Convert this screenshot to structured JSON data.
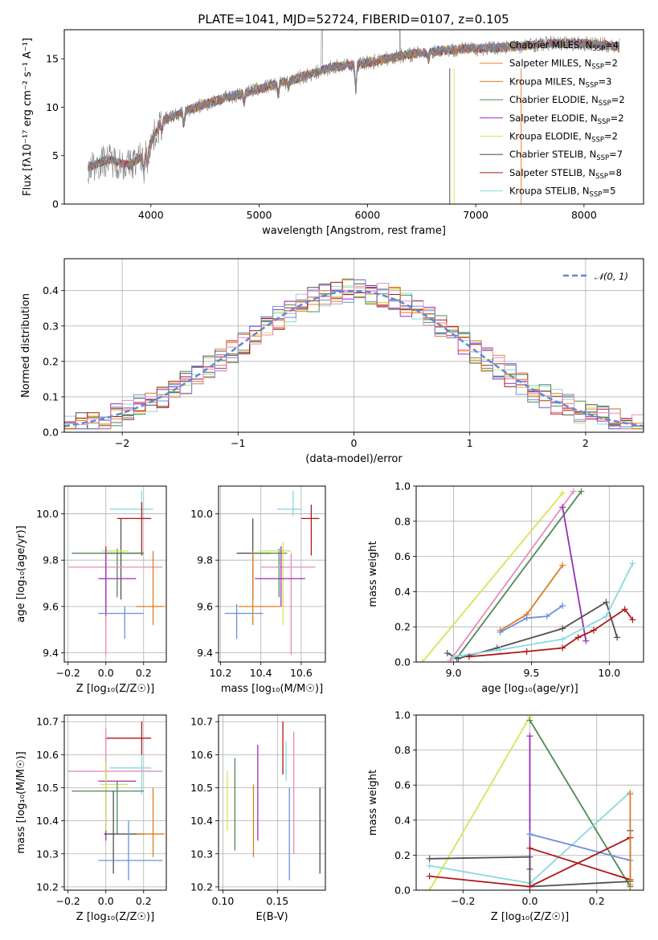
{
  "figure": {
    "title": "PLATE=1041, MJD=52724, FIBERID=0107, z=0.105"
  },
  "colors": {
    "chabrier_miles": "#6a8fdf",
    "salpeter_miles": "#f07f2a",
    "kroupa_miles": "#e07b22",
    "chabrier_elodie": "#4f8a55",
    "salpeter_elodie": "#9a2fb8",
    "kroupa_elodie": "#d9e35a",
    "chabrier_stelib": "#505050",
    "salpeter_stelib": "#b01616",
    "kroupa_stelib": "#8ad9e0",
    "pink": "#e88ac0",
    "spectrum": "#808080",
    "normal_curve": "#5b8bd6"
  },
  "chart_data": [
    {
      "id": "spectrum",
      "type": "line",
      "title": "PLATE=1041, MJD=52724, FIBERID=0107, z=0.105",
      "xlabel": "wavelength [Angstrom, rest frame]",
      "ylabel": "Flux [fλ10⁻¹⁷ erg cm⁻² s⁻¹ A⁻¹]",
      "xlim": [
        3200,
        8550
      ],
      "ylim": [
        0,
        18
      ],
      "xticks": [
        4000,
        5000,
        6000,
        7000,
        8000
      ],
      "yticks": [
        0,
        5,
        10,
        15
      ],
      "grid": false,
      "legend_position": "right",
      "legend": [
        "Chabrier MILES, N_SSP=4",
        "Salpeter MILES, N_SSP=2",
        "Kroupa MILES, N_SSP=3",
        "Chabrier ELODIE, N_SSP=2",
        "Salpeter ELODIE, N_SSP=2",
        "Kroupa ELODIE, N_SSP=2",
        "Chabrier STELIB, N_SSP=7",
        "Salpeter STELIB, N_SSP=8",
        "Kroupa STELIB, N_SSP=5"
      ],
      "continuum": {
        "x": [
          3420,
          3600,
          3800,
          3950,
          4100,
          4300,
          4500,
          4700,
          4900,
          5100,
          5300,
          5500,
          5700,
          5900,
          6100,
          6300,
          6500,
          6700,
          6900,
          7100,
          7300,
          7500,
          7700,
          7900,
          8100,
          8300
        ],
        "y": [
          3.8,
          4.6,
          4.0,
          5.2,
          8.6,
          9.5,
          10.3,
          11.0,
          11.6,
          12.2,
          12.8,
          13.5,
          14.2,
          14.4,
          14.8,
          15.3,
          15.6,
          15.9,
          16.0,
          16.1,
          16.2,
          16.4,
          16.6,
          16.6,
          16.5,
          16.3
        ]
      }
    },
    {
      "id": "residual-histogram",
      "type": "line",
      "xlabel": "(data-model)/error",
      "ylabel": "Normed distribution",
      "xlim": [
        -2.5,
        2.5
      ],
      "ylim": [
        0,
        0.49
      ],
      "xticks": [
        -2,
        -1,
        0,
        1,
        2
      ],
      "yticks": [
        0.0,
        0.1,
        0.2,
        0.3,
        0.4
      ],
      "grid": true,
      "legend_position": "top-right",
      "legend": [
        "𝒩(0, 1)"
      ],
      "normal": {
        "mu": 0,
        "sigma": 1
      }
    },
    {
      "id": "age-vs-z",
      "type": "scatter",
      "xlabel": "Z [log₁₀(Z/Z☉)]",
      "ylabel": "age [log₁₀(age/yr)]",
      "xlim": [
        -0.22,
        0.32
      ],
      "ylim": [
        9.36,
        10.12
      ],
      "xticks": [
        -0.2,
        0.0,
        0.2
      ],
      "yticks": [
        9.4,
        9.6,
        9.8,
        10.0
      ],
      "grid": true,
      "errorbars": [
        {
          "color": "#8ad9e0",
          "x": 0.19,
          "xlo": 0.02,
          "xhi": 0.25,
          "y": 10.02,
          "ylo": 9.99,
          "yhi": 10.1
        },
        {
          "color": "#b01616",
          "x": 0.19,
          "xlo": 0.06,
          "xhi": 0.24,
          "y": 9.98,
          "ylo": 9.82,
          "yhi": 10.05
        },
        {
          "color": "#505050",
          "x": 0.08,
          "xlo": -0.01,
          "xhi": 0.2,
          "y": 9.83,
          "ylo": 9.63,
          "yhi": 9.98
        },
        {
          "color": "#4f8a55",
          "x": 0.06,
          "xlo": -0.18,
          "xhi": 0.2,
          "y": 9.83,
          "ylo": 9.64,
          "yhi": 9.85
        },
        {
          "color": "#d9e35a",
          "x": 0.0,
          "xlo": -0.02,
          "xhi": 0.12,
          "y": 9.84,
          "ylo": 9.52,
          "yhi": 9.88
        },
        {
          "color": "#e88ac0",
          "x": 0.0,
          "xlo": -0.2,
          "xhi": 0.3,
          "y": 9.77,
          "ylo": 9.39,
          "yhi": 9.83
        },
        {
          "color": "#9a2fb8",
          "x": 0.0,
          "xlo": -0.04,
          "xhi": 0.16,
          "y": 9.72,
          "ylo": 9.56,
          "yhi": 9.86
        },
        {
          "color": "#e07b22",
          "x": 0.25,
          "xlo": 0.16,
          "xhi": 0.31,
          "y": 9.6,
          "ylo": 9.52,
          "yhi": 9.84
        },
        {
          "color": "#6a8fdf",
          "x": 0.1,
          "xlo": -0.04,
          "xhi": 0.2,
          "y": 9.57,
          "ylo": 9.46,
          "yhi": 9.6
        }
      ]
    },
    {
      "id": "age-vs-mass",
      "type": "scatter",
      "xlabel": "mass [log₁₀(M/M☉)]",
      "ylabel": "",
      "xlim": [
        10.19,
        10.72
      ],
      "ylim": [
        9.36,
        10.12
      ],
      "xticks": [
        10.2,
        10.4,
        10.6
      ],
      "yticks": [
        9.4,
        9.6,
        9.8,
        10.0
      ],
      "grid": true,
      "errorbars": [
        {
          "color": "#8ad9e0",
          "x": 10.56,
          "xlo": 10.48,
          "xhi": 10.6,
          "y": 10.02,
          "ylo": 9.99,
          "yhi": 10.1
        },
        {
          "color": "#b01616",
          "x": 10.65,
          "xlo": 10.6,
          "xhi": 10.69,
          "y": 9.98,
          "ylo": 9.82,
          "yhi": 10.04
        },
        {
          "color": "#505050",
          "x": 10.36,
          "xlo": 10.28,
          "xhi": 10.45,
          "y": 9.83,
          "ylo": 9.63,
          "yhi": 9.98
        },
        {
          "color": "#4f8a55",
          "x": 10.49,
          "xlo": 10.36,
          "xhi": 10.53,
          "y": 9.83,
          "ylo": 9.64,
          "yhi": 9.85
        },
        {
          "color": "#d9e35a",
          "x": 10.51,
          "xlo": 10.39,
          "xhi": 10.55,
          "y": 9.84,
          "ylo": 9.52,
          "yhi": 9.88
        },
        {
          "color": "#e88ac0",
          "x": 10.55,
          "xlo": 10.4,
          "xhi": 10.67,
          "y": 9.77,
          "ylo": 9.39,
          "yhi": 9.83
        },
        {
          "color": "#9a2fb8",
          "x": 10.5,
          "xlo": 10.37,
          "xhi": 10.62,
          "y": 9.72,
          "ylo": 9.6,
          "yhi": 9.86
        },
        {
          "color": "#e07b22",
          "x": 10.36,
          "xlo": 10.29,
          "xhi": 10.5,
          "y": 9.6,
          "ylo": 9.52,
          "yhi": 9.84
        },
        {
          "color": "#6a8fdf",
          "x": 10.28,
          "xlo": 10.22,
          "xhi": 10.41,
          "y": 9.57,
          "ylo": 9.46,
          "yhi": 9.61
        }
      ]
    },
    {
      "id": "mass-weight-vs-age",
      "type": "line",
      "xlabel": "age [log₁₀(age/yr)]",
      "ylabel": "mass weight",
      "xlim": [
        8.76,
        10.22
      ],
      "ylim": [
        0,
        1.0
      ],
      "xticks": [
        9.0,
        9.5,
        10.0
      ],
      "yticks": [
        0.0,
        0.2,
        0.4,
        0.6,
        0.8,
        1.0
      ],
      "grid": true,
      "series": [
        {
          "color": "#d9e35a",
          "x": [
            8.8,
            9.7
          ],
          "y": [
            0.0,
            0.96
          ]
        },
        {
          "color": "#e88ac0",
          "x": [
            8.98,
            9.77
          ],
          "y": [
            0.01,
            0.97
          ]
        },
        {
          "color": "#4f8a55",
          "x": [
            9.02,
            9.82
          ],
          "y": [
            0.02,
            0.97
          ]
        },
        {
          "color": "#9a2fb8",
          "x": [
            9.7,
            9.85
          ],
          "y": [
            0.88,
            0.12
          ]
        },
        {
          "color": "#e07b22",
          "x": [
            9.3,
            9.47,
            9.7
          ],
          "y": [
            0.18,
            0.27,
            0.55
          ]
        },
        {
          "color": "#6a8fdf",
          "x": [
            9.3,
            9.47,
            9.6,
            9.7
          ],
          "y": [
            0.17,
            0.25,
            0.26,
            0.32
          ]
        },
        {
          "color": "#505050",
          "x": [
            8.96,
            9.03,
            9.28,
            9.7,
            9.98,
            10.05
          ],
          "y": [
            0.05,
            0.02,
            0.08,
            0.19,
            0.34,
            0.14
          ]
        },
        {
          "color": "#8ad9e0",
          "x": [
            9.0,
            9.3,
            9.7,
            9.98,
            10.15
          ],
          "y": [
            0.03,
            0.07,
            0.13,
            0.26,
            0.56
          ]
        },
        {
          "color": "#b01616",
          "x": [
            9.1,
            9.47,
            9.7,
            9.8,
            9.9,
            10.1,
            10.15
          ],
          "y": [
            0.03,
            0.06,
            0.08,
            0.14,
            0.18,
            0.3,
            0.24
          ]
        }
      ]
    },
    {
      "id": "mass-vs-z",
      "type": "scatter",
      "xlabel": "Z [log₁₀(Z/Z☉)]",
      "ylabel": "mass [log₁₀(M/M☉)]",
      "xlim": [
        -0.22,
        0.32
      ],
      "ylim": [
        10.19,
        10.72
      ],
      "xticks": [
        -0.2,
        0.0,
        0.2
      ],
      "yticks": [
        10.2,
        10.3,
        10.4,
        10.5,
        10.6,
        10.7
      ],
      "grid": true,
      "errorbars": [
        {
          "color": "#b01616",
          "x": 0.19,
          "xlo": 0.0,
          "xhi": 0.24,
          "y": 10.65,
          "ylo": 10.6,
          "yhi": 10.7
        },
        {
          "color": "#8ad9e0",
          "x": 0.19,
          "xlo": 0.02,
          "xhi": 0.24,
          "y": 10.56,
          "ylo": 10.48,
          "yhi": 10.6
        },
        {
          "color": "#e88ac0",
          "x": 0.0,
          "xlo": -0.2,
          "xhi": 0.3,
          "y": 10.55,
          "ylo": 10.38,
          "yhi": 10.68
        },
        {
          "color": "#9a2fb8",
          "x": 0.0,
          "xlo": -0.04,
          "xhi": 0.16,
          "y": 10.52,
          "ylo": 10.34,
          "yhi": 10.58
        },
        {
          "color": "#d9e35a",
          "x": 0.0,
          "xlo": -0.03,
          "xhi": 0.12,
          "y": 10.51,
          "ylo": 10.37,
          "yhi": 10.58
        },
        {
          "color": "#4f8a55",
          "x": 0.06,
          "xlo": -0.18,
          "xhi": 0.2,
          "y": 10.49,
          "ylo": 10.36,
          "yhi": 10.52
        },
        {
          "color": "#505050",
          "x": 0.04,
          "xlo": -0.01,
          "xhi": 0.2,
          "y": 10.36,
          "ylo": 10.24,
          "yhi": 10.49
        },
        {
          "color": "#e07b22",
          "x": 0.25,
          "xlo": 0.16,
          "xhi": 0.31,
          "y": 10.36,
          "ylo": 10.29,
          "yhi": 10.5
        },
        {
          "color": "#6a8fdf",
          "x": 0.12,
          "xlo": -0.04,
          "xhi": 0.3,
          "y": 10.28,
          "ylo": 10.22,
          "yhi": 10.4
        }
      ]
    },
    {
      "id": "mass-vs-ebv",
      "type": "scatter",
      "xlabel": "E(B-V)",
      "ylabel": "",
      "xlim": [
        0.096,
        0.194
      ],
      "ylim": [
        10.19,
        10.72
      ],
      "xticks": [
        0.1,
        0.15
      ],
      "yticks": [
        10.2,
        10.3,
        10.4,
        10.5,
        10.6,
        10.7
      ],
      "grid": true,
      "errorbars": [
        {
          "color": "#d9e35a",
          "x": 0.104,
          "y": 10.46,
          "ylo": 10.37,
          "yhi": 10.55
        },
        {
          "color": "#4f8a55",
          "x": 0.111,
          "y": 10.45,
          "ylo": 10.31,
          "yhi": 10.59
        },
        {
          "color": "#e07b22",
          "x": 0.128,
          "y": 10.4,
          "ylo": 10.29,
          "yhi": 10.51
        },
        {
          "color": "#9a2fb8",
          "x": 0.132,
          "y": 10.48,
          "ylo": 10.34,
          "yhi": 10.63
        },
        {
          "color": "#b01616",
          "x": 0.155,
          "y": 10.62,
          "ylo": 10.54,
          "yhi": 10.7
        },
        {
          "color": "#8ad9e0",
          "x": 0.158,
          "y": 10.58,
          "ylo": 10.52,
          "yhi": 10.64
        },
        {
          "color": "#6a8fdf",
          "x": 0.161,
          "y": 10.37,
          "ylo": 10.22,
          "yhi": 10.5
        },
        {
          "color": "#e88ac0",
          "x": 0.165,
          "y": 10.5,
          "ylo": 10.3,
          "yhi": 10.67
        },
        {
          "color": "#505050",
          "x": 0.189,
          "y": 10.37,
          "ylo": 10.24,
          "yhi": 10.5
        }
      ]
    },
    {
      "id": "mass-weight-vs-z",
      "type": "line",
      "xlabel": "Z [log₁₀(Z/Z☉)]",
      "ylabel": "mass weight",
      "xlim": [
        -0.34,
        0.34
      ],
      "ylim": [
        0,
        1.0
      ],
      "xticks": [
        -0.2,
        0.0,
        0.2
      ],
      "yticks": [
        0.0,
        0.2,
        0.4,
        0.6,
        0.8,
        1.0
      ],
      "grid": true,
      "series": [
        {
          "color": "#d9e35a",
          "x": [
            -0.3,
            0.0
          ],
          "y": [
            0.0,
            0.99
          ]
        },
        {
          "color": "#4f8a55",
          "x": [
            0.0,
            0.3
          ],
          "y": [
            0.97,
            0.02
          ]
        },
        {
          "color": "#9a2fb8",
          "x": [
            0.0,
            0.0
          ],
          "y": [
            0.88,
            0.12
          ]
        },
        {
          "color": "#8ad9e0",
          "x": [
            -0.3,
            0.0,
            0.3
          ],
          "y": [
            0.14,
            0.04,
            0.56
          ]
        },
        {
          "color": "#6a8fdf",
          "x": [
            0.0,
            0.3
          ],
          "y": [
            0.32,
            0.17
          ]
        },
        {
          "color": "#505050",
          "x": [
            -0.3,
            0.0,
            0.0,
            0.3,
            0.3
          ],
          "y": [
            0.18,
            0.19,
            0.02,
            0.05,
            0.34
          ]
        },
        {
          "color": "#b01616",
          "x": [
            -0.3,
            0.0,
            0.3
          ],
          "y": [
            0.08,
            0.02,
            0.3
          ]
        },
        {
          "color": "#b01616",
          "x": [
            0.0,
            0.3
          ],
          "y": [
            0.24,
            0.06
          ]
        },
        {
          "color": "#e07b22",
          "x": [
            0.3,
            0.3
          ],
          "y": [
            0.03,
            0.55
          ]
        }
      ]
    }
  ]
}
